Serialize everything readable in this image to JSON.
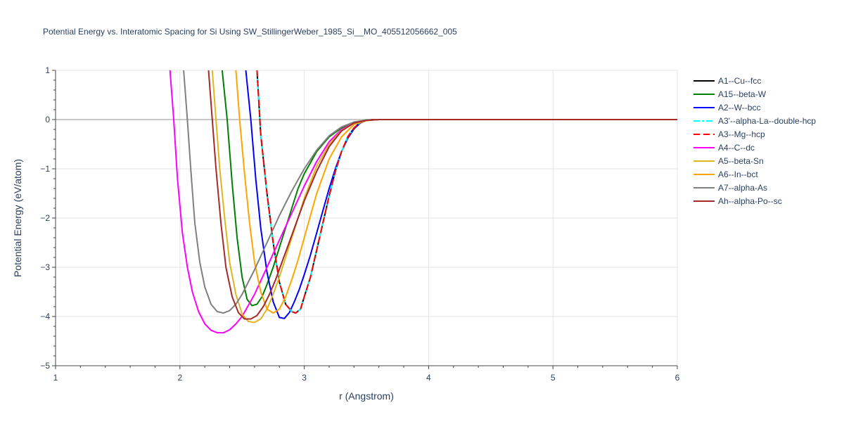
{
  "chart_data": {
    "type": "line",
    "title": "Potential Energy vs. Interatomic Spacing for Si Using SW_StillingerWeber_1985_Si__MO_405512056662_005",
    "xlabel": "r (Angstrom)",
    "ylabel": "Potential Energy (eV/atom)",
    "xlim": [
      1,
      6
    ],
    "ylim": [
      -5,
      1
    ],
    "xticks": [
      1,
      2,
      3,
      4,
      5,
      6
    ],
    "yticks": [
      1,
      0,
      -1,
      -2,
      -3,
      -4,
      -5
    ],
    "ytick_labels": [
      "1",
      "0",
      "−1",
      "−2",
      "−3",
      "−4",
      "−5"
    ],
    "grid": true,
    "legend_position": "right",
    "series": [
      {
        "name": "A1--Cu--fcc",
        "color": "#000000",
        "dash": "solid",
        "x": [
          2.62,
          2.65,
          2.7,
          2.75,
          2.8,
          2.85,
          2.9,
          2.93,
          2.97,
          3.0,
          3.05,
          3.1,
          3.15,
          3.2,
          3.25,
          3.3,
          3.35,
          3.4,
          3.45,
          3.5,
          3.55,
          3.6,
          4.0,
          5.0,
          6.0
        ],
        "y": [
          1.0,
          -0.3,
          -1.5,
          -2.5,
          -3.3,
          -3.75,
          -3.9,
          -3.93,
          -3.85,
          -3.6,
          -3.2,
          -2.65,
          -2.1,
          -1.55,
          -1.05,
          -0.65,
          -0.35,
          -0.17,
          -0.06,
          -0.015,
          0.0,
          0.0,
          0.0,
          0.0,
          0.0
        ]
      },
      {
        "name": "A15--beta-W",
        "color": "#008000",
        "dash": "solid",
        "x": [
          2.34,
          2.38,
          2.42,
          2.46,
          2.5,
          2.54,
          2.58,
          2.62,
          2.66,
          2.7,
          2.75,
          2.8,
          2.85,
          2.9,
          2.95,
          3.0,
          3.1,
          3.2,
          3.3,
          3.4,
          3.5,
          3.6,
          4.0,
          6.0
        ],
        "y": [
          1.0,
          0.0,
          -1.3,
          -2.4,
          -3.2,
          -3.65,
          -3.78,
          -3.75,
          -3.6,
          -3.35,
          -3.0,
          -2.6,
          -2.2,
          -1.8,
          -1.4,
          -1.1,
          -0.65,
          -0.35,
          -0.17,
          -0.06,
          -0.01,
          0.0,
          0.0,
          0.0
        ]
      },
      {
        "name": "A2--W--bcc",
        "color": "#0000ff",
        "dash": "solid",
        "x": [
          2.53,
          2.57,
          2.61,
          2.65,
          2.7,
          2.75,
          2.8,
          2.84,
          2.88,
          2.92,
          2.96,
          3.0,
          3.05,
          3.1,
          3.15,
          3.2,
          3.25,
          3.3,
          3.35,
          3.4,
          3.45,
          3.5,
          3.6,
          4.0,
          6.0
        ],
        "y": [
          1.0,
          0.0,
          -1.2,
          -2.2,
          -3.1,
          -3.7,
          -4.02,
          -4.04,
          -3.92,
          -3.7,
          -3.45,
          -3.15,
          -2.75,
          -2.3,
          -1.85,
          -1.4,
          -1.0,
          -0.65,
          -0.38,
          -0.19,
          -0.07,
          -0.015,
          0.0,
          0.0,
          0.0
        ]
      },
      {
        "name": "A3'--alpha-La--double-hcp",
        "color": "#00ffff",
        "dash": "dashdot",
        "x": [
          2.62,
          2.65,
          2.7,
          2.75,
          2.8,
          2.85,
          2.9,
          2.93,
          2.97,
          3.0,
          3.05,
          3.1,
          3.15,
          3.2,
          3.25,
          3.3,
          3.35,
          3.4,
          3.45,
          3.5,
          3.55,
          3.6,
          4.0,
          5.0,
          6.0
        ],
        "y": [
          1.0,
          -0.3,
          -1.5,
          -2.5,
          -3.3,
          -3.75,
          -3.9,
          -3.93,
          -3.85,
          -3.6,
          -3.2,
          -2.65,
          -2.1,
          -1.55,
          -1.05,
          -0.65,
          -0.35,
          -0.17,
          -0.06,
          -0.015,
          0.0,
          0.0,
          0.0,
          0.0,
          0.0
        ]
      },
      {
        "name": "A3--Mg--hcp",
        "color": "#ff0000",
        "dash": "dash",
        "x": [
          2.62,
          2.65,
          2.7,
          2.75,
          2.8,
          2.85,
          2.9,
          2.93,
          2.97,
          3.0,
          3.05,
          3.1,
          3.15,
          3.2,
          3.25,
          3.3,
          3.35,
          3.4,
          3.45,
          3.5,
          3.55,
          3.6,
          4.0,
          5.0,
          6.0
        ],
        "y": [
          1.0,
          -0.3,
          -1.5,
          -2.5,
          -3.3,
          -3.75,
          -3.9,
          -3.93,
          -3.85,
          -3.6,
          -3.2,
          -2.65,
          -2.1,
          -1.55,
          -1.05,
          -0.65,
          -0.35,
          -0.17,
          -0.06,
          -0.015,
          0.0,
          0.0,
          0.0,
          0.0,
          0.0
        ]
      },
      {
        "name": "A4--C--dc",
        "color": "#ff00ff",
        "dash": "solid",
        "x": [
          1.92,
          1.95,
          1.98,
          2.02,
          2.06,
          2.1,
          2.15,
          2.2,
          2.25,
          2.3,
          2.35,
          2.4,
          2.45,
          2.5,
          2.6,
          2.7,
          2.8,
          2.9,
          3.0,
          3.1,
          3.2,
          3.3,
          3.4,
          3.5,
          3.6,
          4.0,
          6.0
        ],
        "y": [
          1.0,
          0.0,
          -1.2,
          -2.3,
          -3.0,
          -3.5,
          -3.9,
          -4.15,
          -4.28,
          -4.33,
          -4.33,
          -4.27,
          -4.15,
          -4.0,
          -3.55,
          -3.0,
          -2.45,
          -1.9,
          -1.35,
          -0.85,
          -0.45,
          -0.2,
          -0.07,
          -0.015,
          0.0,
          0.0,
          0.0
        ]
      },
      {
        "name": "A5--beta-Sn",
        "color": "#dfb61f",
        "dash": "solid",
        "x": [
          2.26,
          2.29,
          2.32,
          2.36,
          2.4,
          2.45,
          2.5,
          2.55,
          2.6,
          2.65,
          2.7,
          2.75,
          2.8,
          2.85,
          2.9,
          3.0,
          3.1,
          3.2,
          3.3,
          3.4,
          3.5,
          3.6,
          4.0,
          6.0
        ],
        "y": [
          1.0,
          0.0,
          -1.0,
          -2.0,
          -2.9,
          -3.55,
          -3.95,
          -4.1,
          -4.12,
          -4.05,
          -3.85,
          -3.55,
          -3.2,
          -2.8,
          -2.4,
          -1.6,
          -0.95,
          -0.5,
          -0.22,
          -0.07,
          -0.015,
          0.0,
          0.0,
          0.0
        ]
      },
      {
        "name": "A6--In--bct",
        "color": "#ffa500",
        "dash": "solid",
        "x": [
          2.45,
          2.48,
          2.52,
          2.56,
          2.6,
          2.65,
          2.7,
          2.75,
          2.8,
          2.85,
          2.9,
          2.95,
          3.0,
          3.05,
          3.1,
          3.2,
          3.3,
          3.4,
          3.5,
          3.6,
          4.0,
          6.0
        ],
        "y": [
          1.0,
          0.0,
          -1.1,
          -2.1,
          -2.9,
          -3.5,
          -3.85,
          -3.93,
          -3.85,
          -3.6,
          -3.25,
          -2.85,
          -2.4,
          -1.95,
          -1.5,
          -0.8,
          -0.35,
          -0.1,
          -0.02,
          0.0,
          0.0,
          0.0
        ]
      },
      {
        "name": "A7--alpha-As",
        "color": "#808080",
        "dash": "solid",
        "x": [
          2.03,
          2.06,
          2.09,
          2.12,
          2.16,
          2.2,
          2.25,
          2.3,
          2.35,
          2.4,
          2.45,
          2.5,
          2.6,
          2.7,
          2.8,
          2.9,
          3.0,
          3.1,
          3.2,
          3.3,
          3.4,
          3.5,
          3.6,
          4.0,
          6.0
        ],
        "y": [
          1.0,
          0.0,
          -1.1,
          -2.1,
          -2.9,
          -3.4,
          -3.75,
          -3.9,
          -3.93,
          -3.88,
          -3.75,
          -3.55,
          -3.05,
          -2.5,
          -1.95,
          -1.45,
          -1.0,
          -0.62,
          -0.33,
          -0.15,
          -0.05,
          -0.01,
          0.0,
          0.0,
          0.0
        ]
      },
      {
        "name": "Ah--alpha-Po--sc",
        "color": "#a52a2a",
        "dash": "solid",
        "x": [
          2.23,
          2.26,
          2.29,
          2.33,
          2.37,
          2.42,
          2.47,
          2.52,
          2.57,
          2.62,
          2.67,
          2.72,
          2.77,
          2.82,
          2.9,
          3.0,
          3.1,
          3.2,
          3.3,
          3.4,
          3.5,
          3.6,
          4.0,
          6.0
        ],
        "y": [
          1.0,
          0.0,
          -1.0,
          -2.1,
          -3.0,
          -3.6,
          -3.92,
          -4.05,
          -4.05,
          -3.98,
          -3.8,
          -3.55,
          -3.25,
          -2.9,
          -2.35,
          -1.65,
          -1.05,
          -0.55,
          -0.23,
          -0.07,
          -0.015,
          0.0,
          0.0,
          0.0
        ]
      }
    ]
  }
}
